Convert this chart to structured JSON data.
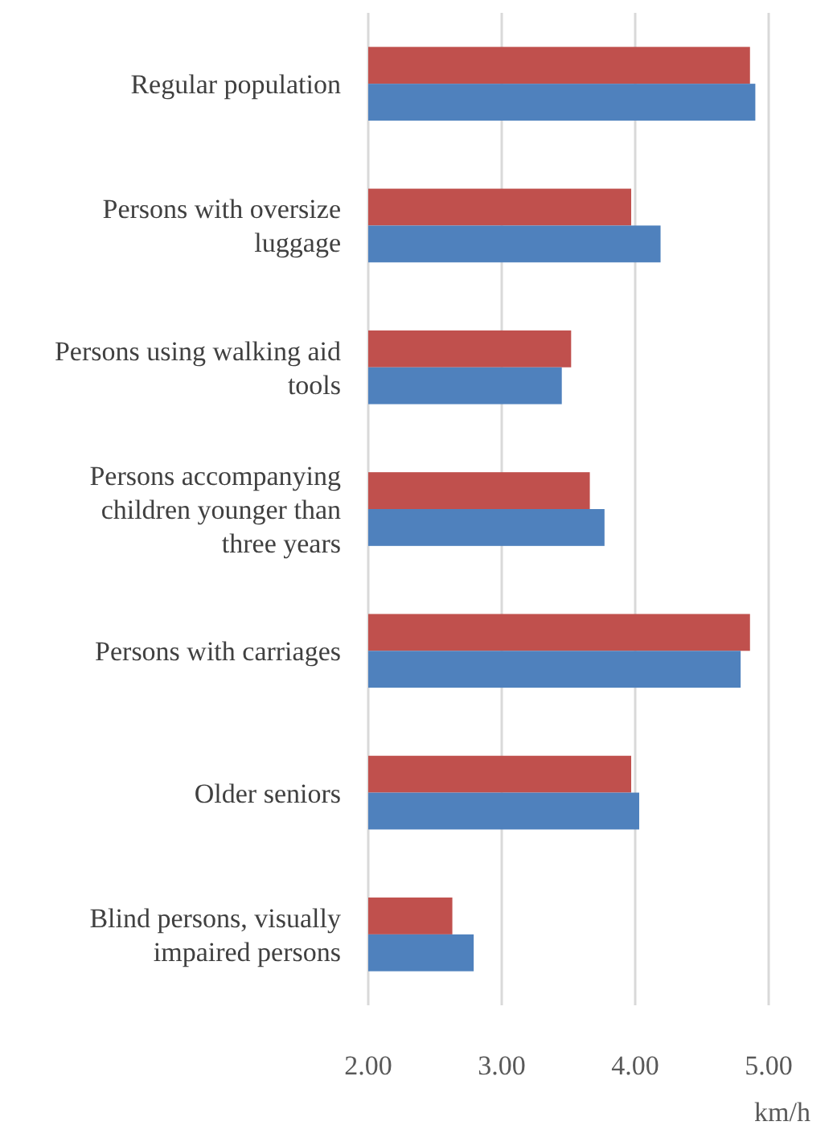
{
  "chart_data": {
    "type": "bar",
    "orientation": "horizontal",
    "xlabel": "km/h",
    "categories": [
      "Regular population",
      "Persons with oversize luggage",
      "Persons using walking aid tools",
      "Persons accompanying children younger than three years",
      "Persons with carriages",
      "Older seniors",
      "Blind persons, visually impaired persons"
    ],
    "series": [
      {
        "color": "#c0504d",
        "values": [
          4.86,
          3.97,
          3.52,
          3.66,
          4.86,
          3.97,
          2.63
        ]
      },
      {
        "color": "#4f81bd",
        "values": [
          4.9,
          4.19,
          3.45,
          3.77,
          4.79,
          4.03,
          2.79
        ]
      }
    ],
    "xlim": [
      2,
      5
    ],
    "xticks": [
      {
        "value": 2,
        "label": "2.00"
      },
      {
        "value": 3,
        "label": "3.00"
      },
      {
        "value": 4,
        "label": "4.00"
      },
      {
        "value": 5,
        "label": "5.00"
      }
    ],
    "grid": "x"
  }
}
